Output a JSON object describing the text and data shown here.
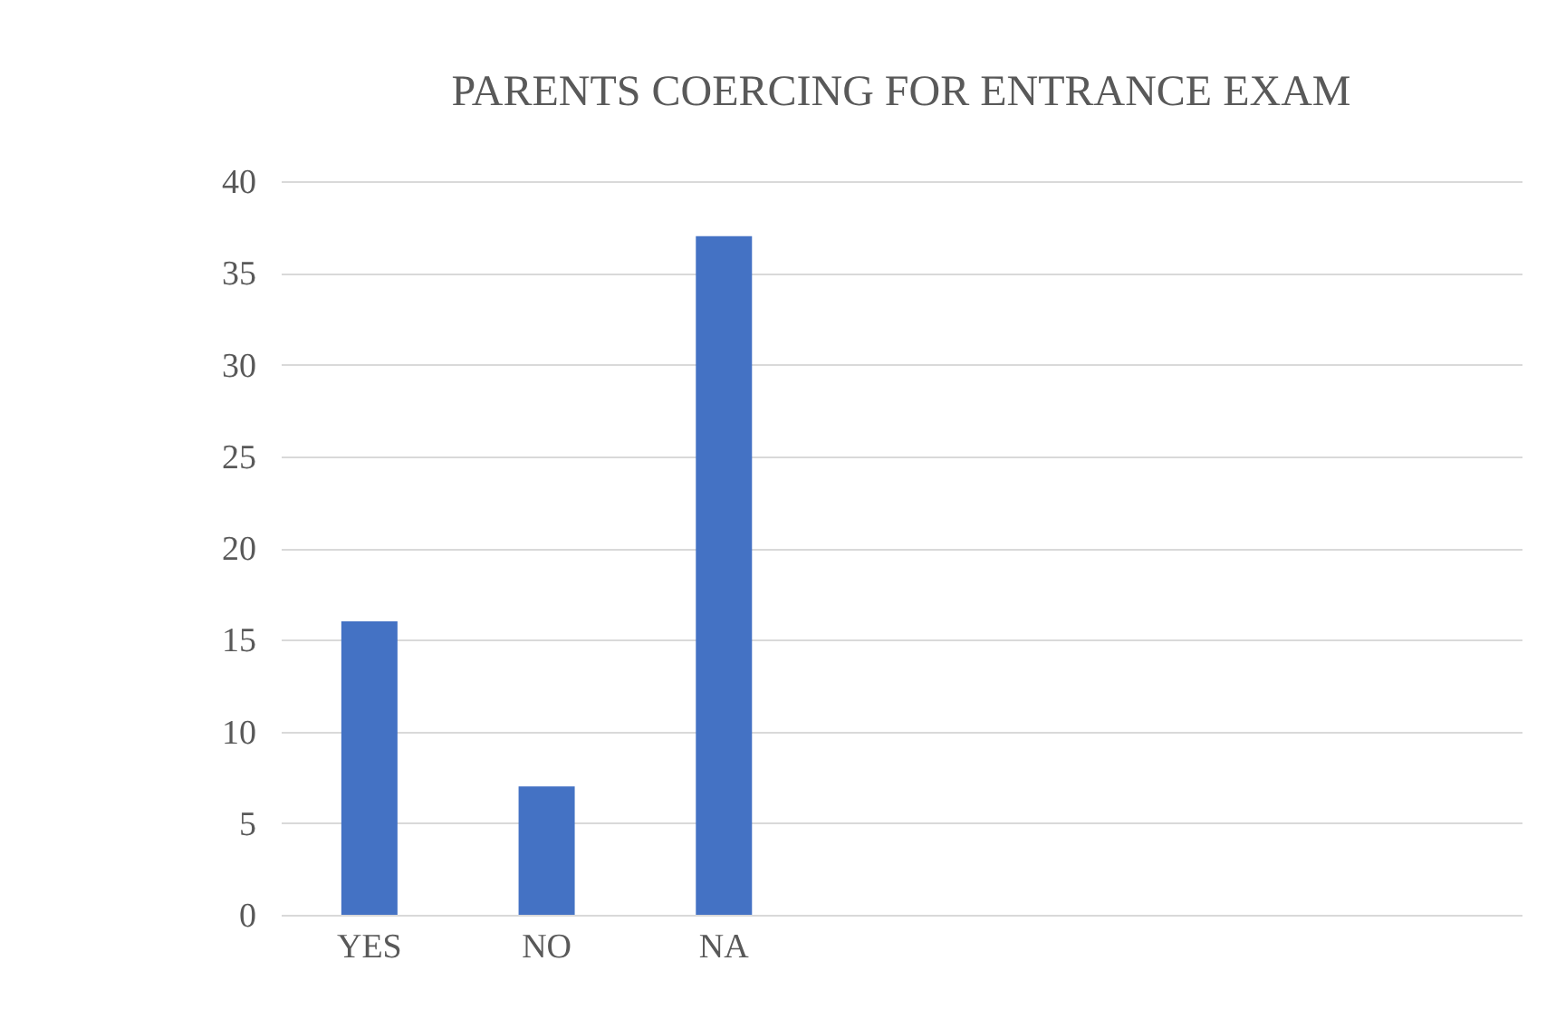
{
  "chart_data": {
    "type": "bar",
    "title": "PARENTS COERCING FOR ENTRANCE EXAM",
    "categories": [
      "YES",
      "NO",
      "NA",
      null,
      null,
      null,
      null
    ],
    "values": [
      16,
      7,
      37,
      null,
      null,
      null,
      null
    ],
    "color": "#4472c4",
    "ylim": [
      0,
      40
    ],
    "yticks": [
      0,
      5,
      10,
      15,
      20,
      25,
      30,
      35,
      40
    ],
    "grid": "y"
  }
}
